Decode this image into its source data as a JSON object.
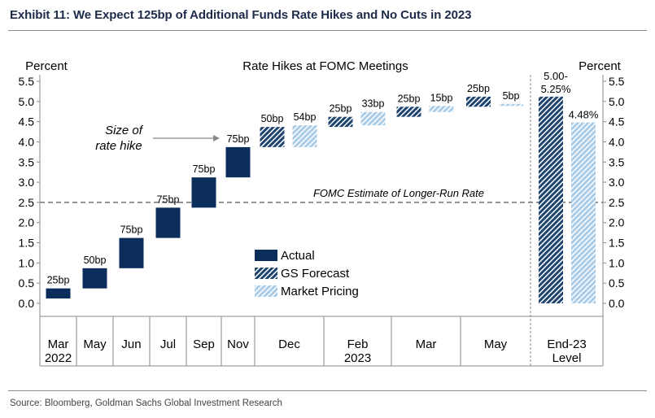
{
  "title": "Exhibit 11: We Expect 125bp of Additional Funds Rate Hikes and No Cuts in 2023",
  "source": "Source: Bloomberg, Goldman Sachs Global Investment Research",
  "colors": {
    "actual": "#0b2d5c",
    "gs_forecast": "#1f4470",
    "market_pricing": "#a9cbe6",
    "grid_dash": "#555555",
    "axis": "#888888"
  },
  "chart_data": {
    "type": "bar",
    "subtitle": "Rate Hikes at FOMC Meetings",
    "ylabel_left": "Percent",
    "ylabel_right": "Percent",
    "ylim": [
      0,
      5.5
    ],
    "yticks": [
      "0.0",
      "0.5",
      "1.0",
      "1.5",
      "2.0",
      "2.5",
      "3.0",
      "3.5",
      "4.0",
      "4.5",
      "5.0",
      "5.5"
    ],
    "categories": [
      {
        "label": "Mar",
        "sublabel": "2022"
      },
      {
        "label": "May",
        "sublabel": ""
      },
      {
        "label": "Jun",
        "sublabel": ""
      },
      {
        "label": "Jul",
        "sublabel": ""
      },
      {
        "label": "Sep",
        "sublabel": ""
      },
      {
        "label": "Nov",
        "sublabel": ""
      },
      {
        "label": "Dec",
        "sublabel": ""
      },
      {
        "label": "Feb",
        "sublabel": "2023"
      },
      {
        "label": "Mar",
        "sublabel": ""
      },
      {
        "label": "May",
        "sublabel": ""
      },
      {
        "label": "End-23",
        "sublabel": "Level"
      }
    ],
    "series": [
      {
        "name": "Actual",
        "style": "solid",
        "bars": [
          {
            "category": 0,
            "from": 0.12,
            "to": 0.37,
            "label": "25bp"
          },
          {
            "category": 1,
            "from": 0.37,
            "to": 0.87,
            "label": "50bp"
          },
          {
            "category": 2,
            "from": 0.87,
            "to": 1.62,
            "label": "75bp"
          },
          {
            "category": 3,
            "from": 1.62,
            "to": 2.37,
            "label": "75bp"
          },
          {
            "category": 4,
            "from": 2.37,
            "to": 3.12,
            "label": "75bp"
          },
          {
            "category": 5,
            "from": 3.12,
            "to": 3.87,
            "label": "75bp"
          }
        ]
      },
      {
        "name": "GS Forecast",
        "style": "hatch-dark",
        "bars": [
          {
            "category": 6,
            "from": 3.87,
            "to": 4.37,
            "label": "50bp"
          },
          {
            "category": 7,
            "from": 4.37,
            "to": 4.62,
            "label": "25bp"
          },
          {
            "category": 8,
            "from": 4.62,
            "to": 4.87,
            "label": "25bp"
          },
          {
            "category": 9,
            "from": 4.87,
            "to": 5.12,
            "label": "25bp"
          },
          {
            "category": 10,
            "from": 0,
            "to": 5.12,
            "label": "5.00-\n5.25%",
            "wide": true
          }
        ]
      },
      {
        "name": "Market Pricing",
        "style": "hatch-light",
        "bars": [
          {
            "category": 6,
            "from": 3.87,
            "to": 4.41,
            "label": "54bp"
          },
          {
            "category": 7,
            "from": 4.41,
            "to": 4.74,
            "label": "33bp"
          },
          {
            "category": 8,
            "from": 4.74,
            "to": 4.89,
            "label": "15bp"
          },
          {
            "category": 9,
            "from": 4.89,
            "to": 4.94,
            "label": "5bp"
          },
          {
            "category": 10,
            "from": 0,
            "to": 4.48,
            "label": "4.48%",
            "wide": true
          }
        ]
      }
    ],
    "reference_line": {
      "value": 2.5,
      "label": "FOMC Estimate of Longer-Run Rate"
    },
    "annotation": {
      "text_line1": "Size of",
      "text_line2": "rate hike"
    },
    "legend": [
      "Actual",
      "GS Forecast",
      "Market Pricing"
    ],
    "legend_position": "center"
  }
}
